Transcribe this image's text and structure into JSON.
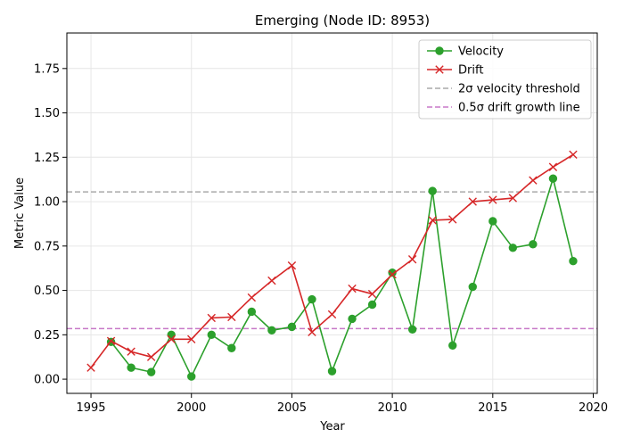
{
  "chart_data": {
    "type": "line",
    "title": "Emerging (Node ID: 8953)",
    "xlabel": "Year",
    "ylabel": "Metric Value",
    "xlim": [
      1993.8,
      2020.2
    ],
    "ylim": [
      -0.08,
      1.95
    ],
    "xticks": [
      1995,
      2000,
      2005,
      2010,
      2015,
      2020
    ],
    "yticks": [
      0.0,
      0.25,
      0.5,
      0.75,
      1.0,
      1.25,
      1.5,
      1.75
    ],
    "ytick_labels": [
      "0.00",
      "0.25",
      "0.50",
      "0.75",
      "1.00",
      "1.25",
      "1.50",
      "1.75"
    ],
    "grid": true,
    "legend_position": "top-right",
    "series": [
      {
        "name": "Velocity",
        "color": "#2ca02c",
        "marker": "circle",
        "x": [
          1996,
          1997,
          1998,
          1999,
          2000,
          2001,
          2002,
          2003,
          2004,
          2005,
          2006,
          2007,
          2008,
          2009,
          2010,
          2011,
          2012,
          2013,
          2014,
          2015,
          2016,
          2017,
          2018,
          2019
        ],
        "y": [
          0.21,
          0.065,
          0.04,
          0.25,
          0.015,
          0.25,
          0.175,
          0.38,
          0.275,
          0.295,
          0.45,
          0.045,
          0.34,
          0.42,
          0.6,
          0.28,
          1.06,
          0.19,
          0.52,
          0.89,
          0.74,
          0.76,
          1.13,
          0.665
        ]
      },
      {
        "name": "Drift",
        "color": "#d62728",
        "marker": "x",
        "x": [
          1995,
          1996,
          1997,
          1998,
          1999,
          2000,
          2001,
          2002,
          2003,
          2004,
          2005,
          2006,
          2007,
          2008,
          2009,
          2010,
          2011,
          2012,
          2013,
          2014,
          2015,
          2016,
          2017,
          2018,
          2019
        ],
        "y": [
          0.065,
          0.215,
          0.155,
          0.125,
          0.225,
          0.225,
          0.345,
          0.35,
          0.46,
          0.555,
          0.64,
          0.265,
          0.365,
          0.51,
          0.48,
          0.59,
          0.675,
          0.895,
          0.9,
          1.0,
          1.01,
          1.02,
          1.12,
          1.195,
          1.265
        ]
      }
    ],
    "reference_lines": [
      {
        "name": "2σ velocity threshold",
        "y": 1.055,
        "color": "#aaaaaa",
        "style": "dashed"
      },
      {
        "name": "0.5σ drift growth line",
        "y": 0.285,
        "color": "#c879c8",
        "style": "dashed"
      }
    ]
  }
}
